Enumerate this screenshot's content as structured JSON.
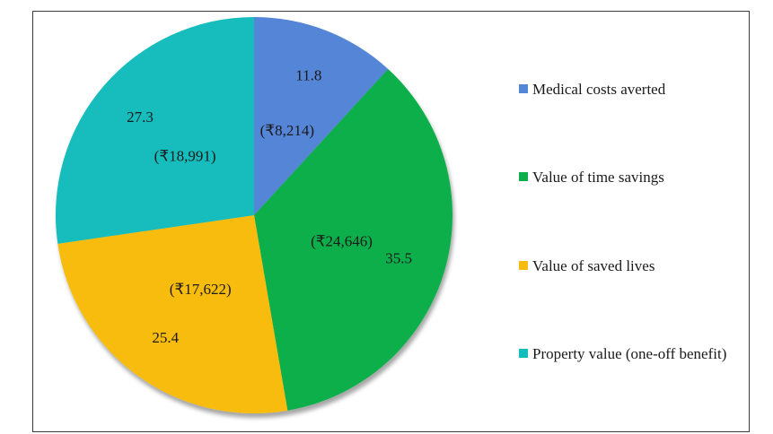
{
  "chart_data": {
    "type": "pie",
    "categories": [
      "Medical costs averted",
      "Value of time savings",
      "Value of saved lives",
      "Property value (one-off benefit)"
    ],
    "values": [
      11.8,
      35.5,
      25.4,
      27.3
    ],
    "amounts": [
      "(₹8,214)",
      "(₹24,646)",
      "(₹17,622)",
      "(₹18,991)"
    ],
    "colors": [
      "#5585D6",
      "#0DAF4C",
      "#F7BC0D",
      "#12BDBC"
    ],
    "legend_position": "right"
  }
}
